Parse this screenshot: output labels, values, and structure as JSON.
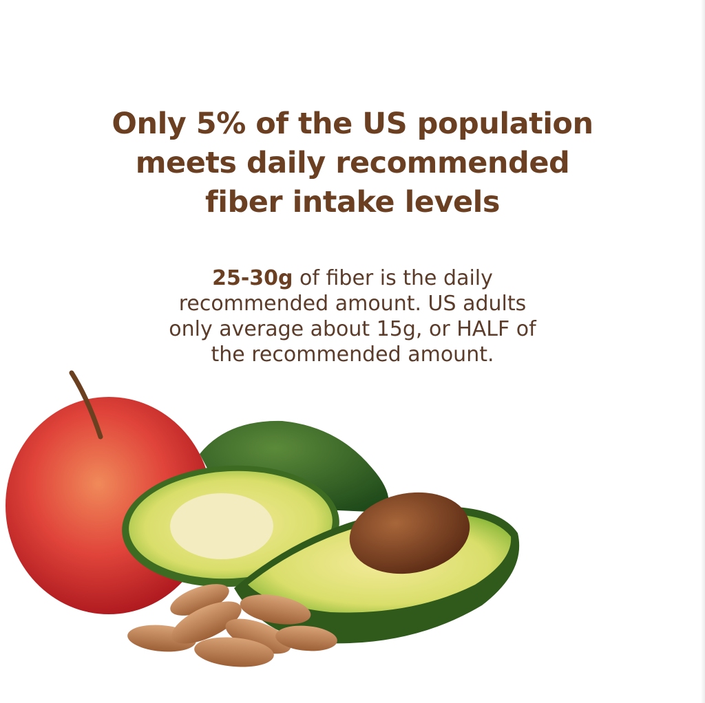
{
  "heading": {
    "lines": [
      "Only 5% of the US population",
      "meets daily recommended",
      "fiber intake levels"
    ]
  },
  "body": {
    "highlight": "25-30g",
    "line1_rest": " of fiber is the daily",
    "line2": "recommended amount. US adults",
    "line3": "only average about 15g, or HALF of",
    "line4": "the recommended amount."
  },
  "colors": {
    "heading": "#6b3f22",
    "body": "#5b3b29",
    "background": "#ffffff"
  },
  "illustration": {
    "items": [
      "apple",
      "avocado-whole",
      "avocado-half-left",
      "avocado-half-with-pit",
      "almonds"
    ]
  }
}
